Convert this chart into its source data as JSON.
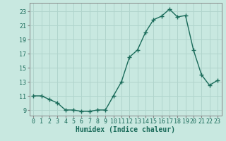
{
  "x": [
    0,
    1,
    2,
    3,
    4,
    5,
    6,
    7,
    8,
    9,
    10,
    11,
    12,
    13,
    14,
    15,
    16,
    17,
    18,
    19,
    20,
    21,
    22,
    23
  ],
  "y": [
    11,
    11,
    10.5,
    10,
    9,
    9,
    8.8,
    8.8,
    9,
    9,
    11,
    13,
    16.5,
    17.5,
    20,
    21.8,
    22.3,
    23.3,
    22.2,
    22.4,
    17.5,
    14,
    12.5,
    13.2
  ],
  "xlabel": "Humidex (Indice chaleur)",
  "xlim": [
    -0.5,
    23.5
  ],
  "ylim": [
    8.2,
    24.2
  ],
  "yticks": [
    9,
    11,
    13,
    15,
    17,
    19,
    21,
    23
  ],
  "xticks": [
    0,
    1,
    2,
    3,
    4,
    5,
    6,
    7,
    8,
    9,
    10,
    11,
    12,
    13,
    14,
    15,
    16,
    17,
    18,
    19,
    20,
    21,
    22,
    23
  ],
  "line_color": "#1a6b5a",
  "marker": "+",
  "marker_size": 4,
  "line_width": 1.0,
  "bg_color": "#c8e8e0",
  "grid_color": "#b0d4cc",
  "tick_fontsize": 6,
  "label_fontsize": 7
}
